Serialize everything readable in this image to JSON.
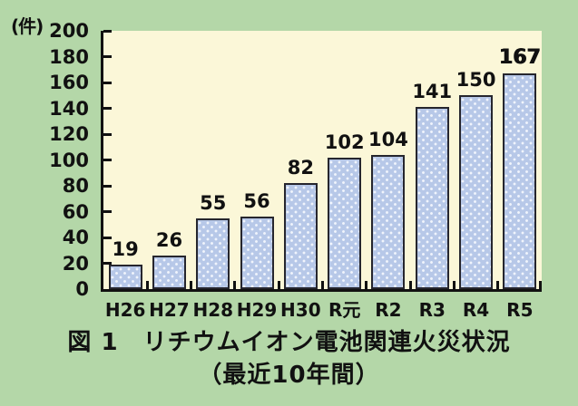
{
  "unit_label": "(件)",
  "caption": {
    "line1": "図 1　リチウムイオン電池関連火災状況",
    "line2": "（最近10年間）"
  },
  "colors": {
    "background": "#b4d7a8",
    "plot_background": "#fbf7d8",
    "bar_fill": "#b7c8e8",
    "bar_dot": "#f0f4fc",
    "bar_border": "#26262e",
    "ink": "#111111"
  },
  "chart_data": {
    "type": "bar",
    "title": "図 1　リチウムイオン電池関連火災状況（最近10年間）",
    "ylabel": "件",
    "xlabel": "",
    "categories": [
      "H26",
      "H27",
      "H28",
      "H29",
      "H30",
      "R元",
      "R2",
      "R3",
      "R4",
      "R5"
    ],
    "values": [
      19,
      26,
      55,
      56,
      82,
      102,
      104,
      141,
      150,
      167
    ],
    "ylim": [
      0,
      200
    ],
    "ytick_step": 20,
    "grid": false,
    "legend": false,
    "emphasis_index": 9
  }
}
